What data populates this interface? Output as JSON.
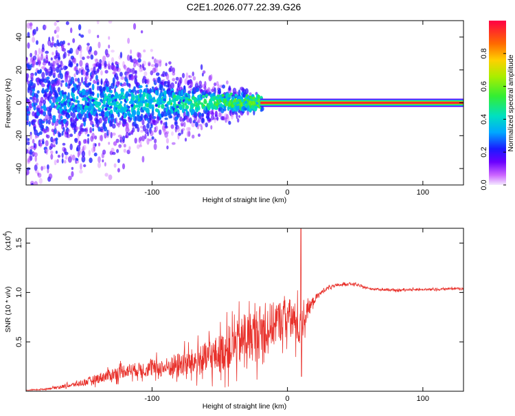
{
  "title": "C2E1.2026.077.22.39.G26",
  "colors": {
    "line": "#e8302a",
    "spectro_low": "#7a1fd6",
    "spectro_high": "#ff0033"
  },
  "chart_data": [
    {
      "type": "heatmap",
      "xlabel": "Height of straight line (km)",
      "ylabel": "Frequency (Hz)",
      "xlim": [
        -193,
        130
      ],
      "ylim": [
        -50,
        50
      ],
      "xticks": [
        -100,
        0,
        100
      ],
      "xticklabels": [
        "-100",
        "0",
        "100"
      ],
      "yticks": [
        -40,
        -20,
        0,
        20,
        40
      ],
      "yticklabels": [
        "-40",
        "-20",
        "0",
        "20",
        "40"
      ],
      "grid": false,
      "colorbar": {
        "label": "Normalized spectral amplitude",
        "range": [
          0,
          1
        ],
        "ticks": [
          0.0,
          0.2,
          0.4,
          0.6,
          0.8
        ],
        "ticklabels": [
          "0.0",
          "0.2",
          "0.4",
          "0.6",
          "0.8"
        ]
      },
      "description_values": {
        "tone_frequency_hz": 0,
        "tone_start_km": -20,
        "tone_amplitude": 0.95
      }
    },
    {
      "type": "line",
      "xlabel": "Height of straight line (km)",
      "ylabel": "SNR (10 * v/v)",
      "y_multiplier_label": "(x10",
      "y_multiplier_exp": "4",
      "y_multiplier_close": ")",
      "xlim": [
        -193,
        130
      ],
      "ylim": [
        0,
        1.65
      ],
      "xticks": [
        -100,
        0,
        100
      ],
      "xticklabels": [
        "-100",
        "0",
        "100"
      ],
      "yticks": [
        0.5,
        1.0,
        1.5
      ],
      "yticklabels": [
        "0.5",
        "1.0",
        "1.5"
      ],
      "grid": false,
      "series": [
        {
          "x": [
            -193,
            -180,
            -170,
            -160,
            -150,
            -140,
            -130,
            -120,
            -110,
            -100,
            -90,
            -80,
            -70,
            -60,
            -50,
            -40,
            -30,
            -20,
            -15,
            -10,
            -5,
            0,
            5,
            8,
            10,
            12,
            15,
            20,
            25,
            30,
            40,
            45,
            50,
            55,
            60,
            70,
            80,
            90,
            100,
            110,
            120,
            130
          ],
          "y": [
            0.01,
            0.02,
            0.04,
            0.06,
            0.09,
            0.13,
            0.17,
            0.21,
            0.22,
            0.23,
            0.24,
            0.27,
            0.29,
            0.33,
            0.38,
            0.46,
            0.54,
            0.6,
            0.64,
            0.68,
            0.72,
            0.76,
            0.7,
            0.66,
            0.6,
            0.72,
            0.82,
            0.93,
            1.0,
            1.05,
            1.08,
            1.09,
            1.08,
            1.06,
            1.04,
            1.03,
            1.02,
            1.03,
            1.03,
            1.03,
            1.04,
            1.04
          ],
          "noise": [
            0.005,
            0.01,
            0.02,
            0.03,
            0.05,
            0.07,
            0.09,
            0.1,
            0.1,
            0.12,
            0.14,
            0.18,
            0.2,
            0.24,
            0.28,
            0.32,
            0.36,
            0.38,
            0.36,
            0.32,
            0.3,
            0.28,
            0.3,
            0.3,
            0.25,
            0.2,
            0.12,
            0.06,
            0.03,
            0.025,
            0.02,
            0.02,
            0.02,
            0.015,
            0.015,
            0.015,
            0.015,
            0.015,
            0.015,
            0.015,
            0.015,
            0.015
          ],
          "spike": {
            "x": 10,
            "y": 1.65
          }
        }
      ]
    }
  ]
}
